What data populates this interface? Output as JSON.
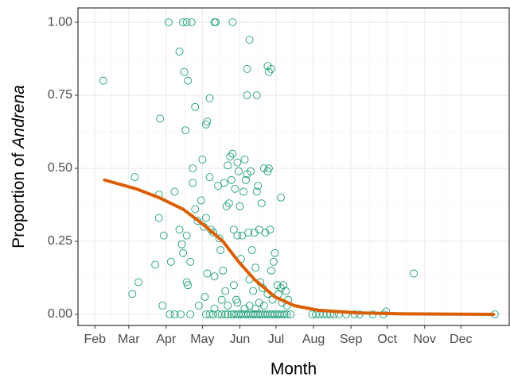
{
  "chart_data": {
    "type": "scatter",
    "xlabel": "Month",
    "ylabel": [
      "Proportion of",
      "Andrena"
    ],
    "xlim": [
      18,
      375
    ],
    "ylim": [
      -0.038,
      1.049
    ],
    "xticks": [
      {
        "value": 32,
        "label": "Feb"
      },
      {
        "value": 60,
        "label": "Mar"
      },
      {
        "value": 91,
        "label": "Apr"
      },
      {
        "value": 121,
        "label": "May"
      },
      {
        "value": 152,
        "label": "Jun"
      },
      {
        "value": 182,
        "label": "Jul"
      },
      {
        "value": 213,
        "label": "Aug"
      },
      {
        "value": 244,
        "label": "Sep"
      },
      {
        "value": 274,
        "label": "Oct"
      },
      {
        "value": 305,
        "label": "Nov"
      },
      {
        "value": 335,
        "label": "Dec"
      }
    ],
    "yticks": [
      {
        "value": 0,
        "label": "0.00"
      },
      {
        "value": 0.25,
        "label": "0.25"
      },
      {
        "value": 0.5,
        "label": "0.50"
      },
      {
        "value": 0.75,
        "label": "0.75"
      },
      {
        "value": 1,
        "label": "1.00"
      }
    ],
    "grid": true,
    "series": [
      {
        "type": "scatter",
        "color": "#1b9e77",
        "x": [
          39,
          93,
          105,
          108,
          112,
          131,
          132,
          146,
          160,
          102,
          106,
          109,
          115,
          127,
          124,
          107,
          158,
          158,
          166,
          175,
          178,
          176,
          86,
          125,
          65,
          85,
          85,
          89,
          82,
          68,
          63,
          95,
          98,
          102,
          104,
          105,
          108,
          108,
          109,
          111,
          113,
          113,
          115,
          117,
          120,
          121,
          122,
          123,
          124,
          125,
          127,
          128,
          130,
          131,
          134,
          135,
          136,
          138,
          139,
          140,
          141,
          142,
          143,
          144,
          145,
          146,
          147,
          147,
          148,
          149,
          150,
          150,
          151,
          152,
          153,
          154,
          155,
          156,
          157,
          158,
          159,
          160,
          161,
          162,
          163,
          164,
          165,
          166,
          167,
          168,
          169,
          170,
          171,
          172,
          173,
          175,
          176,
          177,
          178,
          179,
          180,
          181,
          183,
          186,
          186,
          188,
          190,
          192,
          191,
          187,
          184,
          175,
          172,
          168,
          165,
          160,
          156,
          150,
          142,
          137,
          131,
          118,
          88,
          94,
          98,
          103,
          111,
          124,
          127,
          130,
          134,
          137,
          140,
          142,
          145,
          147,
          149,
          151,
          153,
          155,
          157,
          159,
          161,
          163,
          165,
          167,
          169,
          171,
          173,
          175,
          177,
          179,
          181,
          183,
          185,
          187,
          189,
          191,
          194,
          212,
          215,
          218,
          221,
          224,
          227,
          230,
          234,
          240,
          247,
          251,
          262,
          271,
          273,
          296,
          363
        ],
        "values": [
          0.8,
          1,
          1,
          1,
          1,
          1,
          1,
          1,
          0.94,
          0.9,
          0.83,
          0.8,
          0.71,
          0.74,
          0.65,
          0.63,
          0.84,
          0.75,
          0.75,
          0.85,
          0.84,
          0.83,
          0.67,
          0.66,
          0.47,
          0.41,
          0.33,
          0.27,
          0.17,
          0.11,
          0.07,
          0.18,
          0.42,
          0.29,
          0.24,
          0.21,
          0.27,
          0.11,
          0.1,
          0.18,
          0.45,
          0.5,
          0.36,
          0.32,
          0.39,
          0.53,
          0.3,
          0.06,
          0.33,
          0.14,
          0.47,
          0.29,
          0.28,
          0.13,
          0.44,
          0.26,
          0.22,
          0.15,
          0.45,
          0.08,
          0.37,
          0.51,
          0.38,
          0.54,
          0.46,
          0.55,
          0.1,
          0.29,
          0.43,
          0.05,
          0.52,
          0.27,
          0.49,
          0.37,
          0.19,
          0.27,
          0.42,
          0.53,
          0.46,
          0.48,
          0.28,
          0.12,
          0.49,
          0.22,
          0.08,
          0.28,
          0.16,
          0.42,
          0.44,
          0.29,
          0.11,
          0.38,
          0.09,
          0.5,
          0.28,
          0.49,
          0.5,
          0.29,
          0.15,
          0.05,
          0.18,
          0.21,
          0.1,
          0.4,
          0.09,
          0.1,
          0.08,
          0.05,
          0.03,
          0.04,
          0.07,
          0.07,
          0.03,
          0.04,
          0.02,
          0.03,
          0.02,
          0.04,
          0.03,
          0.05,
          0.02,
          0.03,
          0.03,
          0,
          0,
          0,
          0,
          0,
          0,
          0,
          0,
          0,
          0,
          0,
          0,
          0,
          0,
          0,
          0,
          0,
          0,
          0,
          0,
          0,
          0,
          0,
          0,
          0,
          0,
          0,
          0,
          0,
          0,
          0,
          0,
          0,
          0,
          0,
          0,
          0,
          0,
          0,
          0,
          0,
          0,
          0,
          0,
          0,
          0,
          0,
          0,
          0,
          0.01,
          0.14,
          0
        ]
      },
      {
        "type": "line",
        "color": "#d95f02",
        "x": [
          40,
          66,
          85,
          105,
          121,
          138,
          151,
          164,
          181,
          197,
          217,
          250,
          283,
          362
        ],
        "values": [
          0.46,
          0.43,
          0.4,
          0.36,
          0.31,
          0.25,
          0.18,
          0.12,
          0.06,
          0.03,
          0.014,
          0.005,
          0.002,
          0
        ]
      }
    ]
  }
}
